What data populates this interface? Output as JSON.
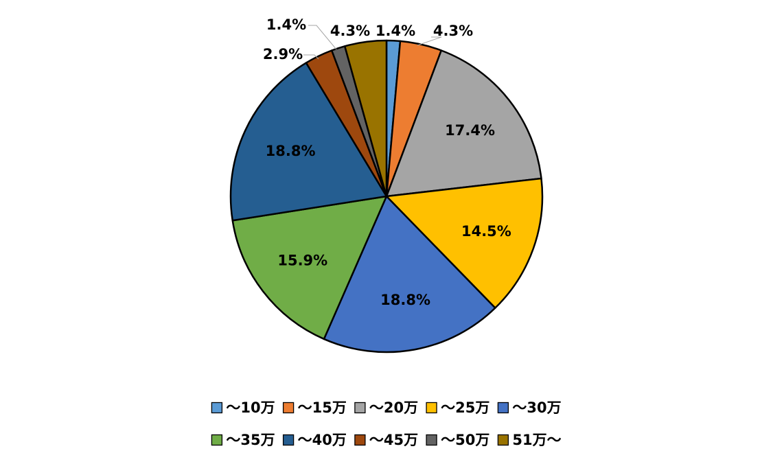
{
  "chart_data": {
    "type": "pie",
    "title": "",
    "start_angle_deg": 0,
    "direction": "clockwise",
    "legend_position": "bottom",
    "series": [
      {
        "name": "～10万",
        "value": 1.4,
        "label": "1.4%",
        "color": "#5b9bd5"
      },
      {
        "name": "～15万",
        "value": 4.3,
        "label": "4.3%",
        "color": "#ed7d31"
      },
      {
        "name": "～20万",
        "value": 17.4,
        "label": "17.4%",
        "color": "#a5a5a5"
      },
      {
        "name": "～25万",
        "value": 14.5,
        "label": "14.5%",
        "color": "#ffc000"
      },
      {
        "name": "～30万",
        "value": 18.8,
        "label": "18.8%",
        "color": "#4472c4"
      },
      {
        "name": "～35万",
        "value": 15.9,
        "label": "15.9%",
        "color": "#70ad47"
      },
      {
        "name": "～40万",
        "value": 18.8,
        "label": "18.8%",
        "color": "#255e91"
      },
      {
        "name": "～45万",
        "value": 2.9,
        "label": "2.9%",
        "color": "#9e480e"
      },
      {
        "name": "～50万",
        "value": 1.4,
        "label": "1.4%",
        "color": "#636363"
      },
      {
        "name": "51万～",
        "value": 4.3,
        "label": "4.3%",
        "color": "#997300"
      }
    ]
  }
}
